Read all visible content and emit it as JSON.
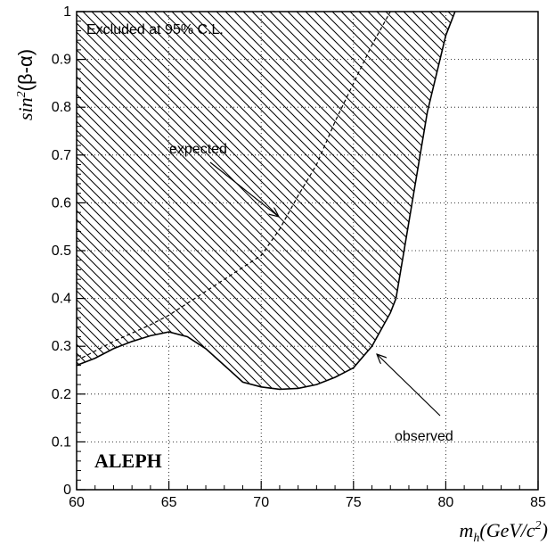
{
  "chart_data": {
    "type": "area",
    "xlabel": {
      "main": "m",
      "sub": "h",
      "paren": "(GeV/c",
      "sup": "2",
      "close": ")"
    },
    "ylabel": {
      "main": "sin",
      "sup": "2",
      "rest": "(β-α)"
    },
    "xlim": [
      60,
      85
    ],
    "ylim": [
      0,
      1
    ],
    "xticks": [
      60,
      65,
      70,
      75,
      80,
      85
    ],
    "yticks": [
      0,
      0.1,
      0.2,
      0.3,
      0.4,
      0.5,
      0.6,
      0.7,
      0.8,
      0.9,
      1
    ],
    "grid": true,
    "series": [
      {
        "name": "observed",
        "style": "solid",
        "x": [
          60,
          61,
          62,
          63,
          64,
          65,
          66,
          67,
          68,
          69,
          70,
          71,
          72,
          73,
          74,
          75,
          76,
          77,
          77.3,
          78,
          79,
          80,
          80.5
        ],
        "y": [
          0.26,
          0.275,
          0.295,
          0.31,
          0.322,
          0.33,
          0.32,
          0.295,
          0.26,
          0.225,
          0.215,
          0.21,
          0.212,
          0.22,
          0.235,
          0.255,
          0.3,
          0.37,
          0.4,
          0.56,
          0.79,
          0.95,
          1.0
        ]
      },
      {
        "name": "expected",
        "style": "dashed",
        "x": [
          60,
          62,
          64,
          65,
          66,
          68,
          70,
          71,
          72,
          73,
          74,
          75,
          76,
          77
        ],
        "y": [
          0.27,
          0.31,
          0.345,
          0.365,
          0.39,
          0.44,
          0.49,
          0.545,
          0.615,
          0.68,
          0.77,
          0.85,
          0.93,
          1.0
        ]
      }
    ],
    "annotations": {
      "excluded": "Excluded at 95% C.L.",
      "expected": "expected",
      "observed": "observed",
      "experiment": "ALEPH"
    }
  }
}
